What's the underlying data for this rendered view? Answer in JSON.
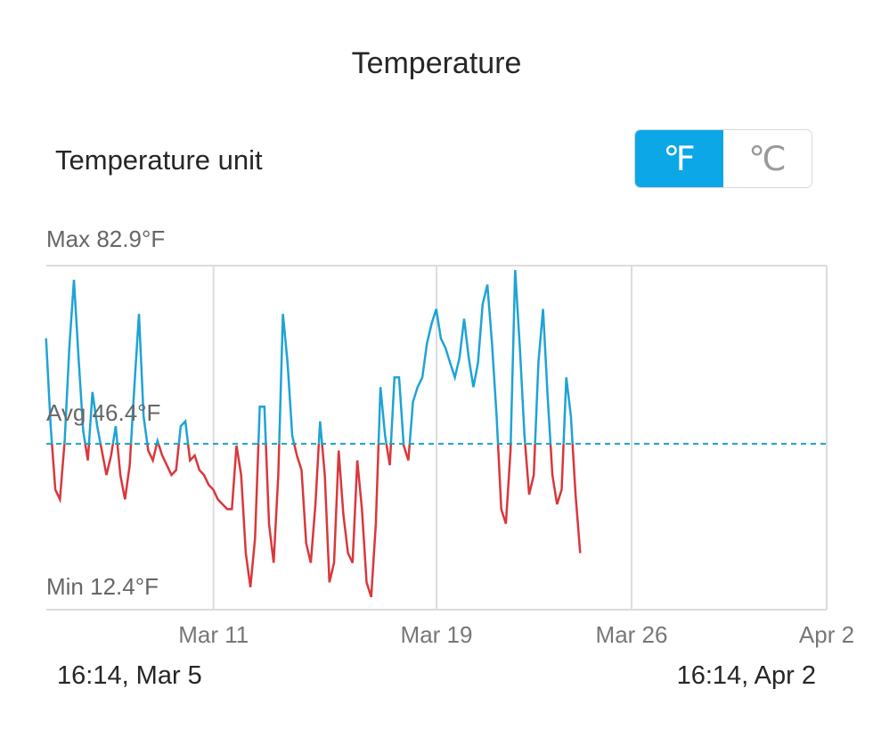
{
  "header": {
    "title": "Temperature"
  },
  "settings": {
    "unit_label": "Temperature unit",
    "units": [
      {
        "label": "℉",
        "selected": true
      },
      {
        "label": "℃",
        "selected": false
      }
    ]
  },
  "colors": {
    "above_avg": "#1ea3d6",
    "below_avg": "#d9373c",
    "avg_line": "#1aa3c8",
    "grid": "#dcdcdc",
    "toggle_active": "#0ba7e6"
  },
  "chart_data": {
    "type": "line",
    "title": "Temperature",
    "max_label": "Max 82.9°F",
    "min_label": "Min 12.4°F",
    "avg_label": "Avg 46.4°F",
    "max": 82.9,
    "min": 12.4,
    "avg": 46.4,
    "ylim": [
      12.4,
      82.9
    ],
    "xlim": [
      "2024-03-05 16:14",
      "2024-04-02 16:14"
    ],
    "grid": true,
    "x_ticks": [
      "Mar 11",
      "Mar 19",
      "Mar 26",
      "Apr 2"
    ],
    "start_label": "16:14,  Mar 5",
    "end_label": "16:14,  Apr 2",
    "series": [
      {
        "points": [
          [
            "03-05 16:00",
            68
          ],
          [
            "03-05 20:00",
            50
          ],
          [
            "03-06 00:00",
            37
          ],
          [
            "03-06 04:00",
            35
          ],
          [
            "03-06 08:00",
            47
          ],
          [
            "03-06 12:00",
            66
          ],
          [
            "03-06 16:00",
            80
          ],
          [
            "03-06 20:00",
            64
          ],
          [
            "03-07 00:00",
            49
          ],
          [
            "03-07 04:00",
            43
          ],
          [
            "03-07 08:00",
            57
          ],
          [
            "03-07 12:00",
            50
          ],
          [
            "03-07 16:00",
            45
          ],
          [
            "03-07 20:00",
            40
          ],
          [
            "03-08 00:00",
            44
          ],
          [
            "03-08 04:00",
            50
          ],
          [
            "03-08 08:00",
            40
          ],
          [
            "03-08 12:00",
            35
          ],
          [
            "03-08 16:00",
            42
          ],
          [
            "03-08 20:00",
            58
          ],
          [
            "03-09 00:00",
            73
          ],
          [
            "03-09 04:00",
            52
          ],
          [
            "03-09 08:00",
            45
          ],
          [
            "03-09 12:00",
            43
          ],
          [
            "03-09 16:00",
            47
          ],
          [
            "03-09 20:00",
            44
          ],
          [
            "03-10 00:00",
            42
          ],
          [
            "03-10 04:00",
            40
          ],
          [
            "03-10 08:00",
            41
          ],
          [
            "03-10 12:00",
            50
          ],
          [
            "03-10 16:00",
            51
          ],
          [
            "03-10 20:00",
            43
          ],
          [
            "03-11 00:00",
            44
          ],
          [
            "03-11 04:00",
            41
          ],
          [
            "03-11 08:00",
            40
          ],
          [
            "03-11 12:00",
            38
          ],
          [
            "03-11 16:00",
            37
          ],
          [
            "03-11 20:00",
            35
          ],
          [
            "03-12 00:00",
            34
          ],
          [
            "03-12 04:00",
            33
          ],
          [
            "03-12 08:00",
            33
          ],
          [
            "03-12 12:00",
            46
          ],
          [
            "03-12 16:00",
            40
          ],
          [
            "03-12 20:00",
            24
          ],
          [
            "03-13 00:00",
            17
          ],
          [
            "03-13 04:00",
            27
          ],
          [
            "03-13 08:00",
            54
          ],
          [
            "03-13 12:00",
            54
          ],
          [
            "03-13 16:00",
            30
          ],
          [
            "03-13 20:00",
            22
          ],
          [
            "03-14 00:00",
            40
          ],
          [
            "03-14 04:00",
            73
          ],
          [
            "03-14 08:00",
            63
          ],
          [
            "03-14 12:00",
            48
          ],
          [
            "03-14 16:00",
            44
          ],
          [
            "03-14 20:00",
            41
          ],
          [
            "03-15 00:00",
            26
          ],
          [
            "03-15 04:00",
            22
          ],
          [
            "03-15 08:00",
            34
          ],
          [
            "03-15 12:00",
            51
          ],
          [
            "03-15 16:00",
            40
          ],
          [
            "03-15 20:00",
            18
          ],
          [
            "03-16 00:00",
            22
          ],
          [
            "03-16 04:00",
            45
          ],
          [
            "03-16 08:00",
            32
          ],
          [
            "03-16 12:00",
            24
          ],
          [
            "03-16 16:00",
            22
          ],
          [
            "03-16 20:00",
            43
          ],
          [
            "03-17 00:00",
            33
          ],
          [
            "03-17 04:00",
            18
          ],
          [
            "03-17 08:00",
            15
          ],
          [
            "03-17 12:00",
            30
          ],
          [
            "03-17 16:00",
            58
          ],
          [
            "03-17 20:00",
            48
          ],
          [
            "03-18 00:00",
            42
          ],
          [
            "03-18 04:00",
            60
          ],
          [
            "03-18 08:00",
            60
          ],
          [
            "03-18 12:00",
            46
          ],
          [
            "03-18 16:00",
            43
          ],
          [
            "03-18 20:00",
            55
          ],
          [
            "03-19 00:00",
            58
          ],
          [
            "03-19 04:00",
            60
          ],
          [
            "03-19 08:00",
            67
          ],
          [
            "03-19 12:00",
            71
          ],
          [
            "03-19 16:00",
            74
          ],
          [
            "03-19 20:00",
            68
          ],
          [
            "03-20 00:00",
            66
          ],
          [
            "03-20 04:00",
            63
          ],
          [
            "03-20 08:00",
            60
          ],
          [
            "03-20 12:00",
            64
          ],
          [
            "03-20 16:00",
            72
          ],
          [
            "03-20 20:00",
            64
          ],
          [
            "03-21 00:00",
            58
          ],
          [
            "03-21 04:00",
            63
          ],
          [
            "03-21 08:00",
            75
          ],
          [
            "03-21 12:00",
            79
          ],
          [
            "03-21 16:00",
            67
          ],
          [
            "03-21 20:00",
            52
          ],
          [
            "03-22 00:00",
            33
          ],
          [
            "03-22 04:00",
            30
          ],
          [
            "03-22 08:00",
            45
          ],
          [
            "03-22 12:00",
            82
          ],
          [
            "03-22 16:00",
            66
          ],
          [
            "03-22 20:00",
            48
          ],
          [
            "03-23 00:00",
            36
          ],
          [
            "03-23 04:00",
            40
          ],
          [
            "03-23 08:00",
            63
          ],
          [
            "03-23 12:00",
            74
          ],
          [
            "03-23 16:00",
            56
          ],
          [
            "03-23 20:00",
            40
          ],
          [
            "03-24 00:00",
            34
          ],
          [
            "03-24 04:00",
            37
          ],
          [
            "03-24 08:00",
            60
          ],
          [
            "03-24 12:00",
            52
          ],
          [
            "03-24 16:00",
            36
          ],
          [
            "03-24 20:00",
            24
          ]
        ]
      }
    ]
  }
}
